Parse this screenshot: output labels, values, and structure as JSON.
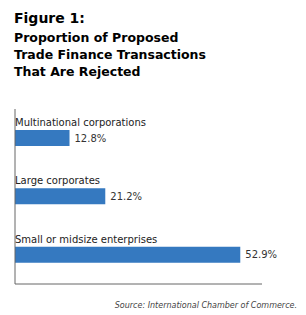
{
  "chart_data": {
    "type": "bar",
    "orientation": "horizontal",
    "title": "Figure 1:",
    "subtitle": "Proportion of Proposed\nTrade Finance Transactions\nThat Are Rejected",
    "annotations": [
      "Source: International Chamber of Commerce."
    ],
    "categories": [
      "Multinational corporations",
      "Large corporates",
      "Small or midsize enterprises"
    ],
    "values": [
      12.8,
      21.2,
      52.9
    ],
    "value_labels": [
      "12.8%",
      "21.2%",
      "52.9%"
    ],
    "data_labels": true,
    "color": "#3579C0",
    "xlim": [
      0,
      58
    ],
    "tick_labels": false,
    "grid": false
  }
}
